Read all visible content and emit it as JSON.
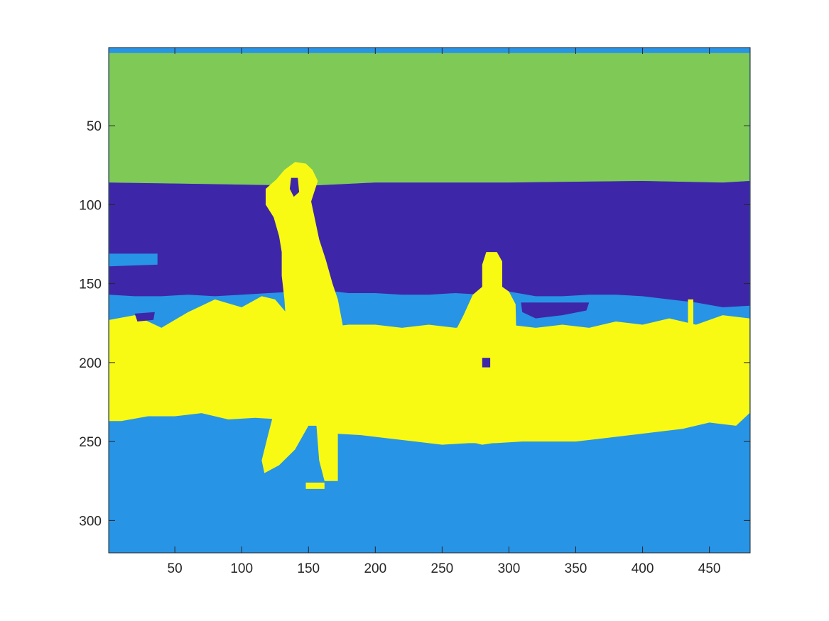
{
  "chart_data": {
    "type": "heatmap",
    "title": "",
    "xlabel": "",
    "ylabel": "",
    "xlim": [
      0.5,
      480.5
    ],
    "ylim": [
      0.5,
      320.5
    ],
    "y_reversed": true,
    "grid": false,
    "x_ticks": [
      50,
      100,
      150,
      200,
      250,
      300,
      350,
      400,
      450
    ],
    "y_ticks": [
      50,
      100,
      150,
      200,
      250,
      300
    ],
    "x_tick_labels": [
      "50",
      "100",
      "150",
      "200",
      "250",
      "300",
      "350",
      "400",
      "450"
    ],
    "y_tick_labels": [
      "50",
      "100",
      "150",
      "200",
      "250",
      "300"
    ],
    "classes": [
      {
        "id": 1,
        "color": "#3E26A8"
      },
      {
        "id": 2,
        "color": "#2894E6"
      },
      {
        "id": 3,
        "color": "#7FC957"
      },
      {
        "id": 4,
        "color": "#F9FA14"
      }
    ],
    "background_class": 2,
    "regions": [
      {
        "class": 3,
        "points": [
          [
            1,
            4
          ],
          [
            480,
            4
          ],
          [
            480,
            85
          ],
          [
            460,
            86
          ],
          [
            400,
            85
          ],
          [
            300,
            86
          ],
          [
            200,
            86
          ],
          [
            150,
            88
          ],
          [
            80,
            87
          ],
          [
            1,
            86
          ]
        ]
      },
      {
        "class": 1,
        "points": [
          [
            1,
            86
          ],
          [
            80,
            87
          ],
          [
            150,
            88
          ],
          [
            200,
            86
          ],
          [
            300,
            86
          ],
          [
            400,
            85
          ],
          [
            460,
            86
          ],
          [
            480,
            85
          ],
          [
            480,
            164
          ],
          [
            460,
            165
          ],
          [
            440,
            162
          ],
          [
            420,
            160
          ],
          [
            400,
            158
          ],
          [
            380,
            157
          ],
          [
            360,
            157
          ],
          [
            340,
            158
          ],
          [
            320,
            158
          ],
          [
            300,
            155
          ],
          [
            280,
            157
          ],
          [
            260,
            156
          ],
          [
            240,
            157
          ],
          [
            220,
            157
          ],
          [
            200,
            156
          ],
          [
            180,
            156
          ],
          [
            160,
            154
          ],
          [
            140,
            155
          ],
          [
            120,
            156
          ],
          [
            100,
            157
          ],
          [
            80,
            158
          ],
          [
            60,
            157
          ],
          [
            40,
            158
          ],
          [
            20,
            158
          ],
          [
            1,
            157
          ]
        ]
      },
      {
        "class": 2,
        "points": [
          [
            1,
            131
          ],
          [
            37,
            131
          ],
          [
            37,
            138
          ],
          [
            1,
            139
          ]
        ]
      },
      {
        "class": 4,
        "points": [
          [
            1,
            173
          ],
          [
            20,
            170
          ],
          [
            40,
            178
          ],
          [
            60,
            168
          ],
          [
            80,
            160
          ],
          [
            100,
            165
          ],
          [
            115,
            158
          ],
          [
            125,
            160
          ],
          [
            140,
            175
          ],
          [
            160,
            178
          ],
          [
            180,
            176
          ],
          [
            200,
            176
          ],
          [
            220,
            178
          ],
          [
            240,
            176
          ],
          [
            260,
            178
          ],
          [
            280,
            176
          ],
          [
            300,
            176
          ],
          [
            320,
            178
          ],
          [
            340,
            176
          ],
          [
            360,
            178
          ],
          [
            380,
            174
          ],
          [
            400,
            176
          ],
          [
            420,
            172
          ],
          [
            440,
            176
          ],
          [
            460,
            170
          ],
          [
            480,
            172
          ],
          [
            480,
            232
          ],
          [
            470,
            240
          ],
          [
            450,
            238
          ],
          [
            430,
            242
          ],
          [
            410,
            244
          ],
          [
            390,
            246
          ],
          [
            370,
            248
          ],
          [
            350,
            250
          ],
          [
            330,
            250
          ],
          [
            310,
            250
          ],
          [
            290,
            251
          ],
          [
            270,
            251
          ],
          [
            250,
            252
          ],
          [
            230,
            250
          ],
          [
            210,
            248
          ],
          [
            190,
            246
          ],
          [
            170,
            245
          ],
          [
            150,
            238
          ],
          [
            130,
            236
          ],
          [
            110,
            235
          ],
          [
            90,
            236
          ],
          [
            70,
            232
          ],
          [
            50,
            234
          ],
          [
            30,
            234
          ],
          [
            10,
            237
          ],
          [
            1,
            237
          ]
        ]
      },
      {
        "class": 4,
        "points": [
          [
            140,
            73
          ],
          [
            148,
            74
          ],
          [
            153,
            78
          ],
          [
            157,
            85
          ],
          [
            152,
            98
          ],
          [
            155,
            110
          ],
          [
            158,
            122
          ],
          [
            163,
            135
          ],
          [
            168,
            150
          ],
          [
            172,
            160
          ],
          [
            176,
            178
          ],
          [
            176,
            230
          ],
          [
            172,
            245
          ],
          [
            172,
            275
          ],
          [
            162,
            275
          ],
          [
            158,
            262
          ],
          [
            156,
            240
          ],
          [
            150,
            240
          ],
          [
            140,
            255
          ],
          [
            128,
            265
          ],
          [
            117,
            270
          ],
          [
            115,
            262
          ],
          [
            120,
            245
          ],
          [
            124,
            232
          ],
          [
            128,
            215
          ],
          [
            132,
            200
          ],
          [
            134,
            185
          ],
          [
            132,
            160
          ],
          [
            130,
            145
          ],
          [
            130,
            130
          ],
          [
            128,
            120
          ],
          [
            124,
            108
          ],
          [
            118,
            100
          ],
          [
            118,
            90
          ],
          [
            126,
            84
          ],
          [
            132,
            78
          ]
        ]
      },
      {
        "class": 4,
        "points": [
          [
            283,
            130
          ],
          [
            291,
            130
          ],
          [
            295,
            136
          ],
          [
            295,
            152
          ],
          [
            300,
            155
          ],
          [
            305,
            163
          ],
          [
            306,
            200
          ],
          [
            300,
            208
          ],
          [
            298,
            236
          ],
          [
            296,
            250
          ],
          [
            280,
            252
          ],
          [
            270,
            250
          ],
          [
            264,
            248
          ],
          [
            262,
            238
          ],
          [
            258,
            230
          ],
          [
            255,
            215
          ],
          [
            256,
            195
          ],
          [
            260,
            180
          ],
          [
            266,
            170
          ],
          [
            273,
            157
          ],
          [
            280,
            152
          ],
          [
            280,
            138
          ]
        ]
      },
      {
        "class": 4,
        "points": [
          [
            434,
            160
          ],
          [
            438,
            160
          ],
          [
            438,
            222
          ],
          [
            434,
            222
          ]
        ]
      },
      {
        "class": 4,
        "points": [
          [
            148,
            276
          ],
          [
            162,
            276
          ],
          [
            162,
            280
          ],
          [
            148,
            280
          ]
        ]
      },
      {
        "class": 1,
        "points": [
          [
            137,
            83
          ],
          [
            142,
            83
          ],
          [
            143,
            92
          ],
          [
            139,
            95
          ],
          [
            136,
            90
          ]
        ]
      },
      {
        "class": 1,
        "points": [
          [
            309,
            162
          ],
          [
            360,
            162
          ],
          [
            358,
            167
          ],
          [
            340,
            170
          ],
          [
            320,
            172
          ],
          [
            310,
            168
          ]
        ]
      },
      {
        "class": 1,
        "points": [
          [
            20,
            169
          ],
          [
            35,
            168
          ],
          [
            34,
            173
          ],
          [
            22,
            174
          ]
        ]
      },
      {
        "class": 1,
        "points": [
          [
            280,
            197
          ],
          [
            286,
            197
          ],
          [
            286,
            203
          ],
          [
            280,
            203
          ]
        ]
      }
    ]
  }
}
